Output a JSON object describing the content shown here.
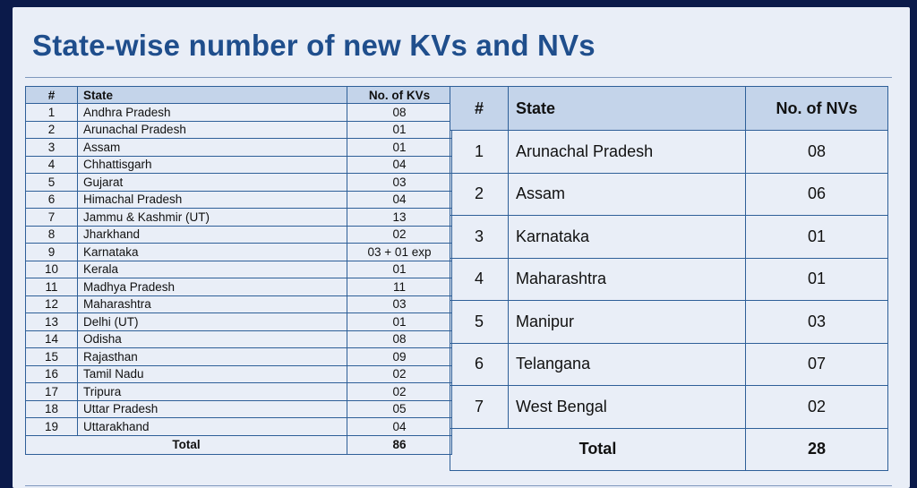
{
  "title": "State-wise number of new KVs and NVs",
  "kv_table": {
    "headers": [
      "#",
      "State",
      "No. of KVs"
    ],
    "rows": [
      [
        "1",
        "Andhra Pradesh",
        "08"
      ],
      [
        "2",
        "Arunachal Pradesh",
        "01"
      ],
      [
        "3",
        "Assam",
        "01"
      ],
      [
        "4",
        "Chhattisgarh",
        "04"
      ],
      [
        "5",
        "Gujarat",
        "03"
      ],
      [
        "6",
        "Himachal Pradesh",
        "04"
      ],
      [
        "7",
        "Jammu & Kashmir (UT)",
        "13"
      ],
      [
        "8",
        "Jharkhand",
        "02"
      ],
      [
        "9",
        "Karnataka",
        "03 + 01 exp"
      ],
      [
        "10",
        "Kerala",
        "01"
      ],
      [
        "11",
        "Madhya Pradesh",
        "11"
      ],
      [
        "12",
        "Maharashtra",
        "03"
      ],
      [
        "13",
        "Delhi (UT)",
        "01"
      ],
      [
        "14",
        "Odisha",
        "08"
      ],
      [
        "15",
        "Rajasthan",
        "09"
      ],
      [
        "16",
        "Tamil Nadu",
        "02"
      ],
      [
        "17",
        "Tripura",
        "02"
      ],
      [
        "18",
        "Uttar Pradesh",
        "05"
      ],
      [
        "19",
        "Uttarakhand",
        "04"
      ]
    ],
    "total_label": "Total",
    "total_value": "86"
  },
  "nv_table": {
    "headers": [
      "#",
      "State",
      "No. of NVs"
    ],
    "rows": [
      [
        "1",
        "Arunachal Pradesh",
        "08"
      ],
      [
        "2",
        "Assam",
        "06"
      ],
      [
        "3",
        "Karnataka",
        "01"
      ],
      [
        "4",
        "Maharashtra",
        "01"
      ],
      [
        "5",
        "Manipur",
        "03"
      ],
      [
        "6",
        "Telangana",
        "07"
      ],
      [
        "7",
        "West Bengal",
        "02"
      ]
    ],
    "total_label": "Total",
    "total_value": "28"
  },
  "colors": {
    "title": "#1f4e8c",
    "header_fill": "#c4d4ea",
    "border": "#2e5f98",
    "slide_bg": "#e9eef7"
  }
}
